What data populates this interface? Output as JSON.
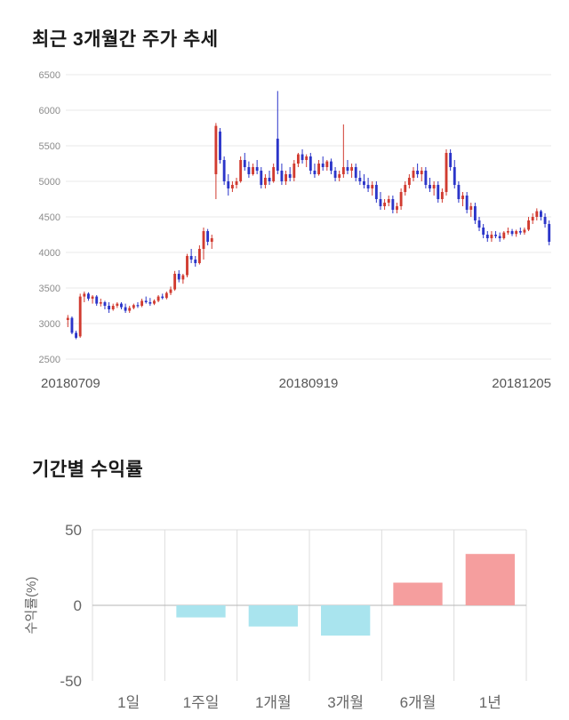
{
  "page": {
    "background": "#ffffff"
  },
  "chart_data": [
    {
      "type": "candlestick",
      "title": "최근 3개월간 주가 추세",
      "ylim": [
        2500,
        6500
      ],
      "y_ticks": [
        2500,
        3000,
        3500,
        4000,
        4500,
        5000,
        5500,
        6000,
        6500
      ],
      "x_tick_labels": [
        "20180709",
        "20180919",
        "20181205"
      ],
      "up_color": "#d13b30",
      "down_color": "#2b35c9",
      "grid_color": "#e8e8e8",
      "candles": [
        [
          3050,
          3120,
          2950,
          3080
        ],
        [
          3080,
          3100,
          2850,
          2870
        ],
        [
          2870,
          2900,
          2780,
          2800
        ],
        [
          2820,
          3420,
          2800,
          3380
        ],
        [
          3380,
          3450,
          3300,
          3420
        ],
        [
          3420,
          3440,
          3320,
          3350
        ],
        [
          3350,
          3400,
          3280,
          3380
        ],
        [
          3380,
          3400,
          3250,
          3280
        ],
        [
          3280,
          3350,
          3240,
          3300
        ],
        [
          3300,
          3320,
          3200,
          3250
        ],
        [
          3250,
          3300,
          3150,
          3200
        ],
        [
          3200,
          3280,
          3180,
          3250
        ],
        [
          3250,
          3300,
          3220,
          3280
        ],
        [
          3280,
          3300,
          3200,
          3230
        ],
        [
          3230,
          3280,
          3150,
          3180
        ],
        [
          3180,
          3250,
          3150,
          3220
        ],
        [
          3220,
          3280,
          3200,
          3260
        ],
        [
          3260,
          3300,
          3220,
          3250
        ],
        [
          3250,
          3350,
          3230,
          3320
        ],
        [
          3320,
          3380,
          3280,
          3300
        ],
        [
          3300,
          3360,
          3250,
          3280
        ],
        [
          3280,
          3340,
          3260,
          3320
        ],
        [
          3320,
          3400,
          3300,
          3380
        ],
        [
          3380,
          3420,
          3340,
          3360
        ],
        [
          3360,
          3450,
          3340,
          3430
        ],
        [
          3430,
          3520,
          3400,
          3480
        ],
        [
          3480,
          3740,
          3460,
          3700
        ],
        [
          3700,
          3750,
          3580,
          3620
        ],
        [
          3620,
          3700,
          3560,
          3680
        ],
        [
          3680,
          3980,
          3650,
          3950
        ],
        [
          3950,
          4050,
          3850,
          3900
        ],
        [
          3900,
          3950,
          3800,
          3850
        ],
        [
          3850,
          4100,
          3830,
          4050
        ],
        [
          4050,
          4350,
          3900,
          4300
        ],
        [
          4300,
          4330,
          4100,
          4150
        ],
        [
          4150,
          4250,
          4050,
          4200
        ],
        [
          5100,
          5820,
          4750,
          5780
        ],
        [
          5700,
          5750,
          5250,
          5300
        ],
        [
          5300,
          5350,
          4950,
          5000
        ],
        [
          5000,
          5100,
          4800,
          4900
        ],
        [
          4900,
          5000,
          4850,
          4950
        ],
        [
          4950,
          5050,
          4900,
          5000
        ],
        [
          5000,
          5350,
          4980,
          5300
        ],
        [
          5300,
          5400,
          5150,
          5200
        ],
        [
          5200,
          5280,
          5050,
          5100
        ],
        [
          5100,
          5250,
          5080,
          5200
        ],
        [
          5200,
          5300,
          5100,
          5150
        ],
        [
          5150,
          5200,
          4900,
          4950
        ],
        [
          4950,
          5100,
          4900,
          5050
        ],
        [
          5050,
          5150,
          4950,
          5000
        ],
        [
          5000,
          5250,
          4980,
          5200
        ],
        [
          5600,
          6270,
          5100,
          5150
        ],
        [
          5150,
          5250,
          4950,
          5000
        ],
        [
          5000,
          5150,
          4950,
          5100
        ],
        [
          5100,
          5200,
          5000,
          5050
        ],
        [
          5050,
          5300,
          5000,
          5250
        ],
        [
          5250,
          5400,
          5200,
          5380
        ],
        [
          5380,
          5450,
          5250,
          5300
        ],
        [
          5300,
          5380,
          5200,
          5350
        ],
        [
          5350,
          5400,
          5100,
          5150
        ],
        [
          5150,
          5250,
          5050,
          5100
        ],
        [
          5100,
          5300,
          5080,
          5250
        ],
        [
          5250,
          5350,
          5150,
          5200
        ],
        [
          5200,
          5300,
          5150,
          5280
        ],
        [
          5280,
          5320,
          5100,
          5150
        ],
        [
          5150,
          5200,
          5000,
          5050
        ],
        [
          5050,
          5150,
          5000,
          5100
        ],
        [
          5100,
          5800,
          5050,
          5200
        ],
        [
          5200,
          5300,
          5100,
          5150
        ],
        [
          5150,
          5250,
          5050,
          5200
        ],
        [
          5200,
          5250,
          5000,
          5050
        ],
        [
          5050,
          5150,
          4950,
          5000
        ],
        [
          5000,
          5100,
          4900,
          4950
        ],
        [
          4950,
          5050,
          4850,
          4900
        ],
        [
          4900,
          5000,
          4800,
          4950
        ],
        [
          4950,
          5000,
          4700,
          4750
        ],
        [
          4750,
          4850,
          4600,
          4650
        ],
        [
          4650,
          4750,
          4600,
          4700
        ],
        [
          4700,
          4800,
          4650,
          4750
        ],
        [
          4750,
          4800,
          4550,
          4600
        ],
        [
          4600,
          4700,
          4550,
          4650
        ],
        [
          4650,
          4900,
          4600,
          4850
        ],
        [
          4850,
          5000,
          4800,
          4950
        ],
        [
          4950,
          5100,
          4900,
          5050
        ],
        [
          5050,
          5200,
          5000,
          5150
        ],
        [
          5150,
          5250,
          5050,
          5100
        ],
        [
          5100,
          5200,
          5000,
          5150
        ],
        [
          5150,
          5200,
          4900,
          4950
        ],
        [
          4950,
          5050,
          4850,
          4900
        ],
        [
          4900,
          5000,
          4800,
          4950
        ],
        [
          4950,
          5000,
          4700,
          4750
        ],
        [
          4750,
          4900,
          4700,
          4850
        ],
        [
          4850,
          5450,
          4800,
          5400
        ],
        [
          5400,
          5450,
          5150,
          5200
        ],
        [
          5200,
          5300,
          4900,
          4950
        ],
        [
          4950,
          5000,
          4700,
          4750
        ],
        [
          4750,
          4850,
          4650,
          4800
        ],
        [
          4800,
          4850,
          4550,
          4600
        ],
        [
          4600,
          4700,
          4500,
          4650
        ],
        [
          4650,
          4700,
          4400,
          4450
        ],
        [
          4450,
          4500,
          4300,
          4350
        ],
        [
          4350,
          4400,
          4200,
          4250
        ],
        [
          4250,
          4300,
          4150,
          4200
        ],
        [
          4200,
          4300,
          4150,
          4250
        ],
        [
          4250,
          4300,
          4200,
          4230
        ],
        [
          4230,
          4280,
          4150,
          4200
        ],
        [
          4200,
          4300,
          4180,
          4280
        ],
        [
          4280,
          4350,
          4250,
          4300
        ],
        [
          4300,
          4330,
          4230,
          4260
        ],
        [
          4260,
          4320,
          4220,
          4300
        ],
        [
          4300,
          4350,
          4250,
          4280
        ],
        [
          4280,
          4350,
          4250,
          4320
        ],
        [
          4320,
          4500,
          4300,
          4450
        ],
        [
          4450,
          4550,
          4400,
          4500
        ],
        [
          4500,
          4620,
          4450,
          4580
        ],
        [
          4580,
          4600,
          4450,
          4500
        ],
        [
          4500,
          4550,
          4350,
          4400
        ],
        [
          4400,
          4450,
          4100,
          4150
        ]
      ]
    },
    {
      "type": "bar",
      "title": "기간별 수익률",
      "ylabel": "수익률(%)",
      "ylim": [
        -50,
        50
      ],
      "y_ticks": [
        50,
        0,
        -50
      ],
      "categories": [
        "1일",
        "1주일",
        "1개월",
        "3개월",
        "6개월",
        "1년"
      ],
      "values": [
        0,
        -8,
        -14,
        -20,
        15,
        34
      ],
      "positive_color": "#f59e9e",
      "negative_color": "#a9e4ee",
      "grid_color": "#dddddd",
      "zero_line_color": "#b5b5b5"
    }
  ]
}
